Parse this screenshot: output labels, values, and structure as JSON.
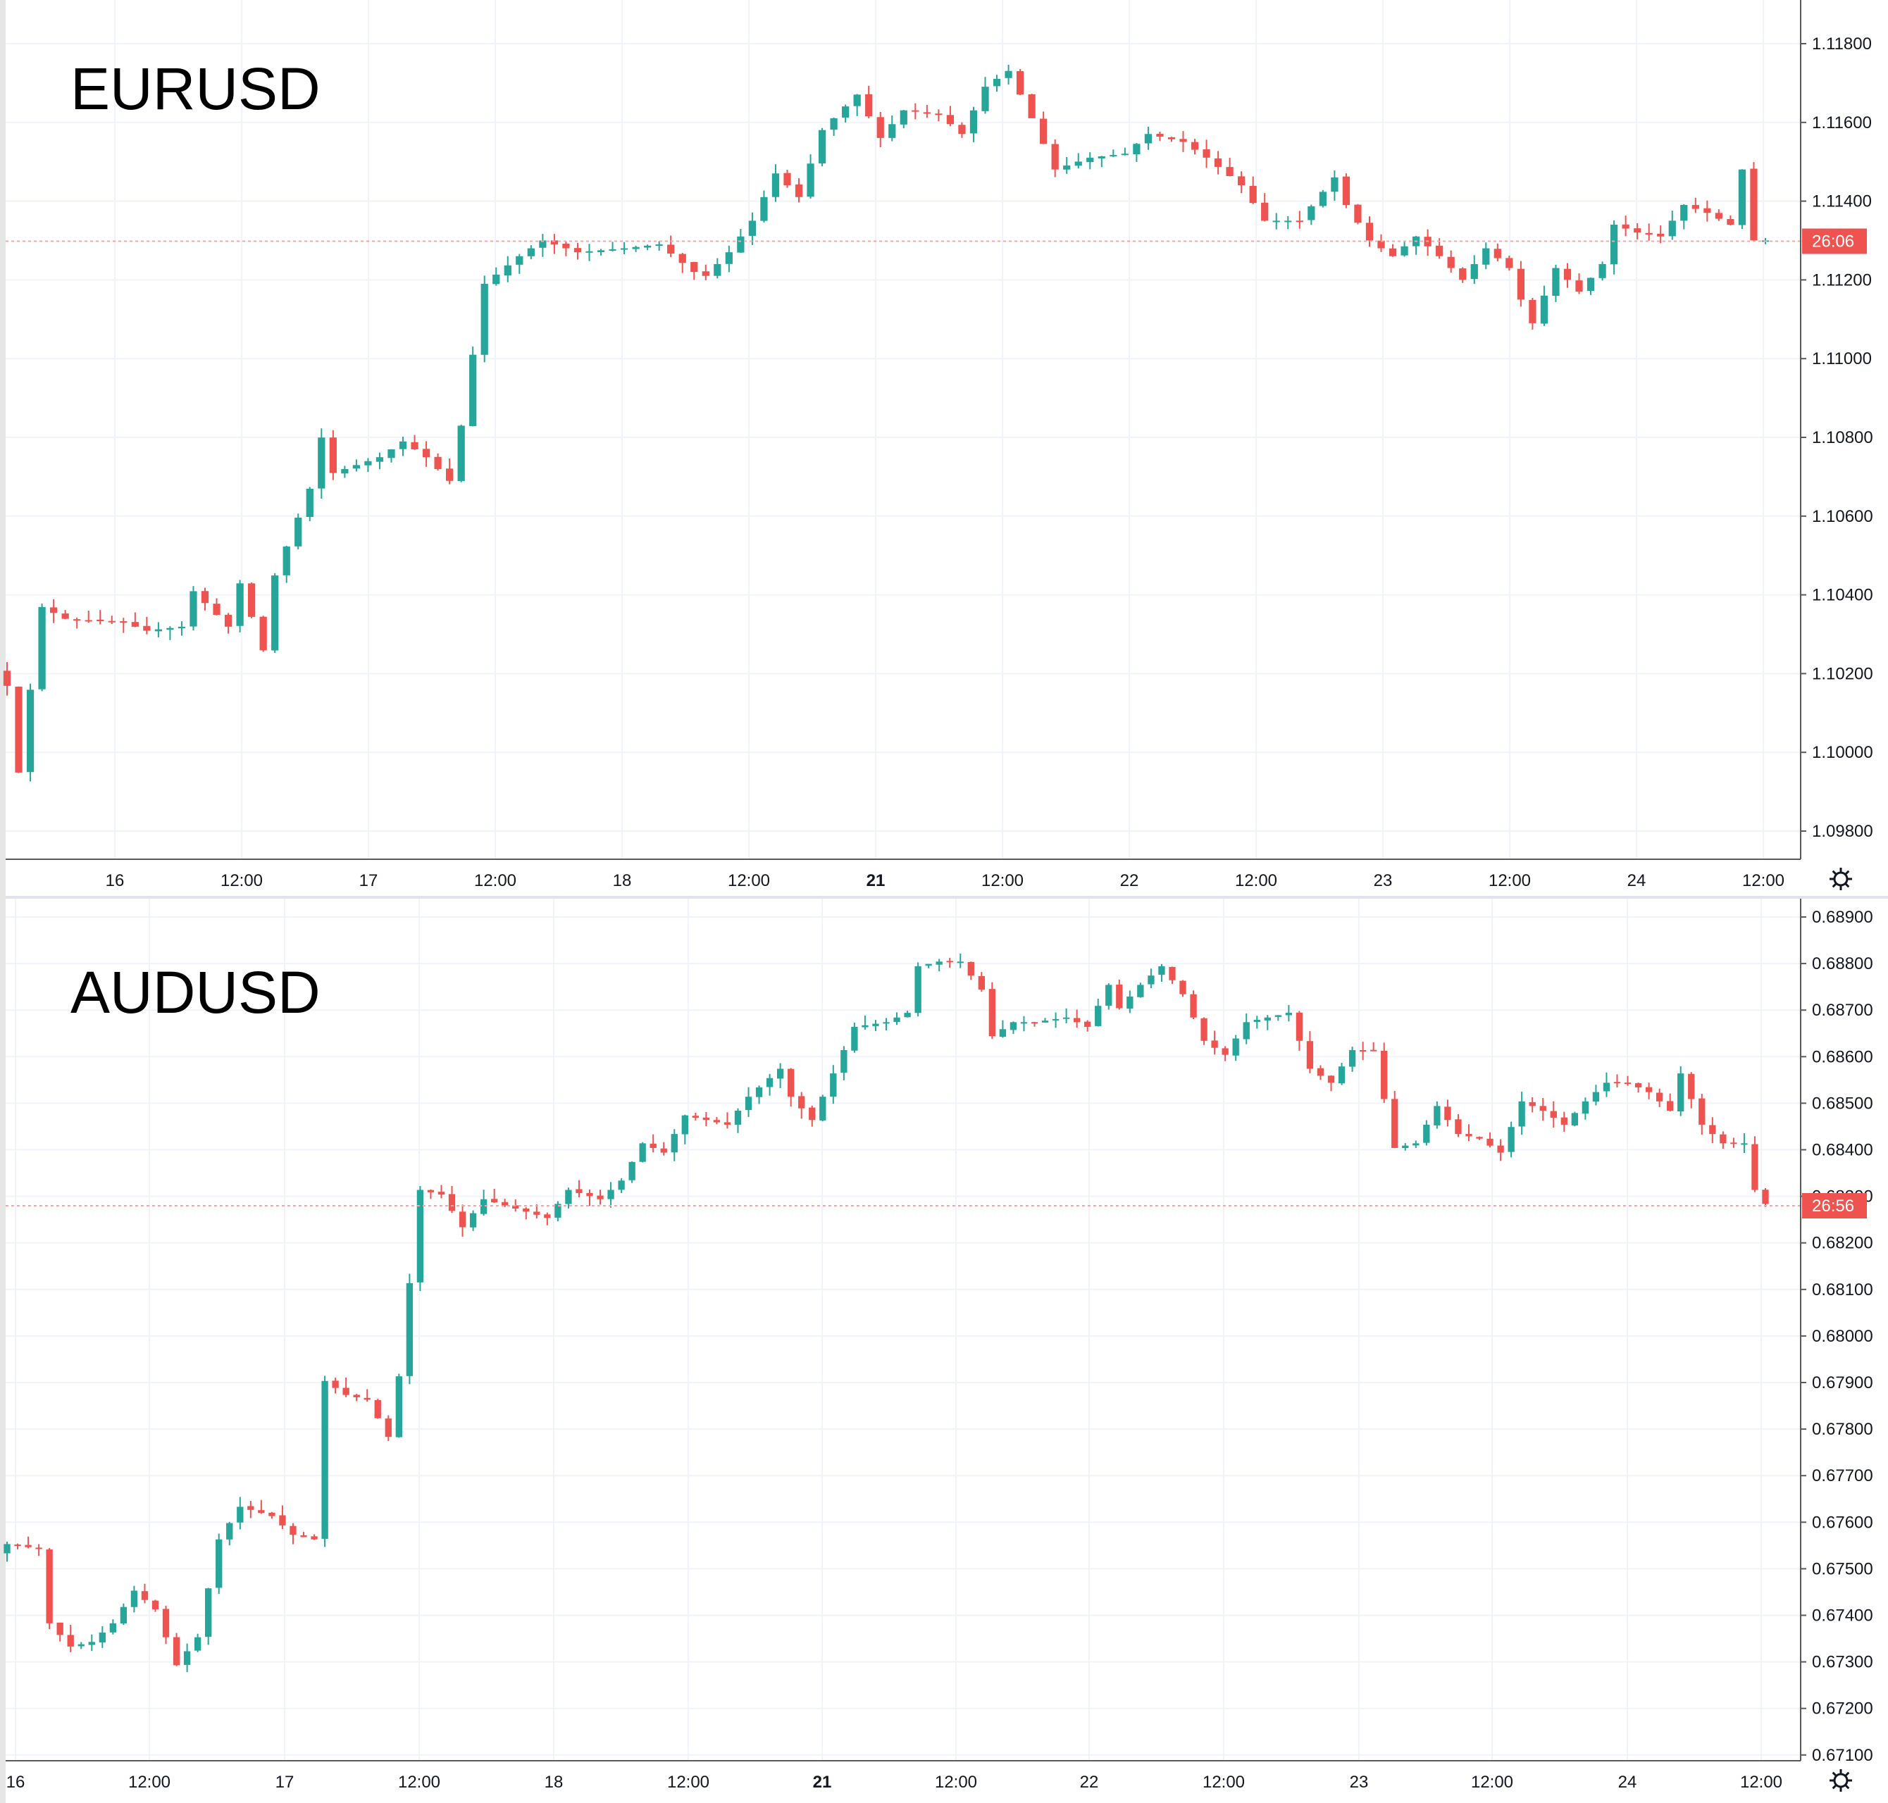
{
  "chart_data": [
    {
      "type": "candlestick",
      "title": "EURUSD",
      "price_line": 1.11288,
      "countdown": "26:06",
      "x_ticks": [
        "16",
        "12:00",
        "17",
        "12:00",
        "18",
        "12:00",
        "21",
        "12:00",
        "22",
        "12:00",
        "23",
        "12:00",
        "24",
        "12:00"
      ],
      "x_ticks_bold": [
        "21"
      ],
      "y_ticks": [
        "1.11800",
        "1.11600",
        "1.11400",
        "1.11200",
        "1.11000",
        "1.10800",
        "1.10600",
        "1.10400",
        "1.10200",
        "1.10000",
        "1.09800"
      ],
      "ylim": [
        1.0972,
        1.119
      ],
      "grid": true,
      "keypoints": [
        [
          0,
          1.1016
        ],
        [
          1,
          1.0994
        ],
        [
          3,
          1.1036
        ],
        [
          5,
          1.1033
        ],
        [
          10,
          1.1032
        ],
        [
          12,
          1.103
        ],
        [
          15,
          1.1031
        ],
        [
          16,
          1.104
        ],
        [
          19,
          1.1031
        ],
        [
          20,
          1.1042
        ],
        [
          22,
          1.1025
        ],
        [
          23,
          1.1044
        ],
        [
          26,
          1.1066
        ],
        [
          27,
          1.1079
        ],
        [
          28,
          1.107
        ],
        [
          32,
          1.1074
        ],
        [
          34,
          1.1078
        ],
        [
          36,
          1.1074
        ],
        [
          38,
          1.1068
        ],
        [
          39,
          1.1082
        ],
        [
          41,
          1.1118
        ],
        [
          44,
          1.1125
        ],
        [
          46,
          1.1129
        ],
        [
          49,
          1.1126
        ],
        [
          53,
          1.1127
        ],
        [
          56,
          1.1128
        ],
        [
          59,
          1.1121
        ],
        [
          60,
          1.112
        ],
        [
          62,
          1.1126
        ],
        [
          64,
          1.1134
        ],
        [
          66,
          1.1146
        ],
        [
          68,
          1.114
        ],
        [
          70,
          1.1157
        ],
        [
          73,
          1.1166
        ],
        [
          75,
          1.1155
        ],
        [
          77,
          1.1162
        ],
        [
          80,
          1.1161
        ],
        [
          82,
          1.1156
        ],
        [
          84,
          1.1168
        ],
        [
          86,
          1.1172
        ],
        [
          88,
          1.116
        ],
        [
          90,
          1.1147
        ],
        [
          93,
          1.115
        ],
        [
          96,
          1.1151
        ],
        [
          98,
          1.1156
        ],
        [
          101,
          1.1154
        ],
        [
          103,
          1.115
        ],
        [
          106,
          1.1143
        ],
        [
          108,
          1.1134
        ],
        [
          111,
          1.1134
        ],
        [
          114,
          1.1145
        ],
        [
          115,
          1.1138
        ],
        [
          117,
          1.1129
        ],
        [
          119,
          1.1125
        ],
        [
          121,
          1.113
        ],
        [
          123,
          1.1125
        ],
        [
          125,
          1.1119
        ],
        [
          127,
          1.1127
        ],
        [
          129,
          1.1122
        ],
        [
          130,
          1.1114
        ],
        [
          131,
          1.1108
        ],
        [
          133,
          1.1122
        ],
        [
          135,
          1.1116
        ],
        [
          137,
          1.1123
        ],
        [
          138,
          1.1133
        ],
        [
          140,
          1.1131
        ],
        [
          142,
          1.113
        ],
        [
          144,
          1.1138
        ],
        [
          146,
          1.1136
        ],
        [
          148,
          1.1133
        ],
        [
          149,
          1.1147
        ],
        [
          150,
          1.1129
        ],
        [
          151,
          1.1129
        ]
      ]
    },
    {
      "type": "candlestick",
      "title": "AUDUSD",
      "price_line": 0.68266,
      "countdown": "26:56",
      "x_ticks": [
        "16",
        "12:00",
        "17",
        "12:00",
        "18",
        "12:00",
        "21",
        "12:00",
        "22",
        "12:00",
        "23",
        "12:00",
        "24",
        "12:00"
      ],
      "x_ticks_bold": [
        "21"
      ],
      "y_ticks": [
        "0.68900",
        "0.68800",
        "0.68700",
        "0.68600",
        "0.68500",
        "0.68400",
        "0.68300",
        "0.68200",
        "0.68100",
        "0.68000",
        "0.67900",
        "0.67800",
        "0.67700",
        "0.67600",
        "0.67500",
        "0.67400",
        "0.67300",
        "0.67200",
        "0.67100"
      ],
      "ylim": [
        0.67075,
        0.68925
      ],
      "grid": true,
      "keypoints": [
        [
          0,
          0.6754
        ],
        [
          3,
          0.6753
        ],
        [
          4,
          0.6737
        ],
        [
          6,
          0.6732
        ],
        [
          8,
          0.6733
        ],
        [
          10,
          0.6737
        ],
        [
          12,
          0.6744
        ],
        [
          14,
          0.674
        ],
        [
          16,
          0.6728
        ],
        [
          18,
          0.6734
        ],
        [
          20,
          0.6755
        ],
        [
          22,
          0.6762
        ],
        [
          25,
          0.676
        ],
        [
          27,
          0.6756
        ],
        [
          29,
          0.6755
        ],
        [
          30,
          0.6789
        ],
        [
          32,
          0.6786
        ],
        [
          34,
          0.6785
        ],
        [
          36,
          0.6777
        ],
        [
          37,
          0.679
        ],
        [
          39,
          0.683
        ],
        [
          41,
          0.6829
        ],
        [
          43,
          0.6822
        ],
        [
          45,
          0.6828
        ],
        [
          48,
          0.6826
        ],
        [
          51,
          0.6824
        ],
        [
          53,
          0.683
        ],
        [
          56,
          0.6828
        ],
        [
          58,
          0.6832
        ],
        [
          60,
          0.684
        ],
        [
          62,
          0.6838
        ],
        [
          64,
          0.6846
        ],
        [
          66,
          0.6845
        ],
        [
          68,
          0.6844
        ],
        [
          70,
          0.685
        ],
        [
          73,
          0.6856
        ],
        [
          74,
          0.685
        ],
        [
          76,
          0.6845
        ],
        [
          78,
          0.6855
        ],
        [
          80,
          0.6865
        ],
        [
          83,
          0.6866
        ],
        [
          85,
          0.6868
        ],
        [
          86,
          0.6878
        ],
        [
          88,
          0.6879
        ],
        [
          90,
          0.6879
        ],
        [
          92,
          0.6873
        ],
        [
          93,
          0.6863
        ],
        [
          95,
          0.6866
        ],
        [
          97,
          0.6866
        ],
        [
          100,
          0.6867
        ],
        [
          102,
          0.6865
        ],
        [
          104,
          0.6874
        ],
        [
          105,
          0.6869
        ],
        [
          107,
          0.6874
        ],
        [
          109,
          0.6878
        ],
        [
          111,
          0.6872
        ],
        [
          113,
          0.6862
        ],
        [
          115,
          0.6859
        ],
        [
          117,
          0.6866
        ],
        [
          119,
          0.6867
        ],
        [
          121,
          0.6868
        ],
        [
          123,
          0.6856
        ],
        [
          125,
          0.6853
        ],
        [
          127,
          0.686
        ],
        [
          129,
          0.686
        ],
        [
          131,
          0.6839
        ],
        [
          133,
          0.684
        ],
        [
          135,
          0.6848
        ],
        [
          137,
          0.6842
        ],
        [
          139,
          0.6841
        ],
        [
          141,
          0.6838
        ],
        [
          143,
          0.6849
        ],
        [
          145,
          0.6847
        ],
        [
          147,
          0.6844
        ],
        [
          149,
          0.6849
        ],
        [
          151,
          0.6853
        ],
        [
          153,
          0.6853
        ],
        [
          155,
          0.6851
        ],
        [
          157,
          0.6847
        ],
        [
          158,
          0.6855
        ],
        [
          160,
          0.6844
        ],
        [
          162,
          0.684
        ],
        [
          164,
          0.684
        ],
        [
          165,
          0.683
        ],
        [
          166,
          0.6827
        ]
      ]
    }
  ],
  "colors": {
    "up": "#26a69a",
    "down": "#ef5350",
    "price_line": "#f4a7a5",
    "label_bg": "#ef5350",
    "grid": "#f0f3fa",
    "axis_text": "#131722"
  },
  "icons": [
    "settings-gear-icon",
    "settings-gear-icon"
  ]
}
